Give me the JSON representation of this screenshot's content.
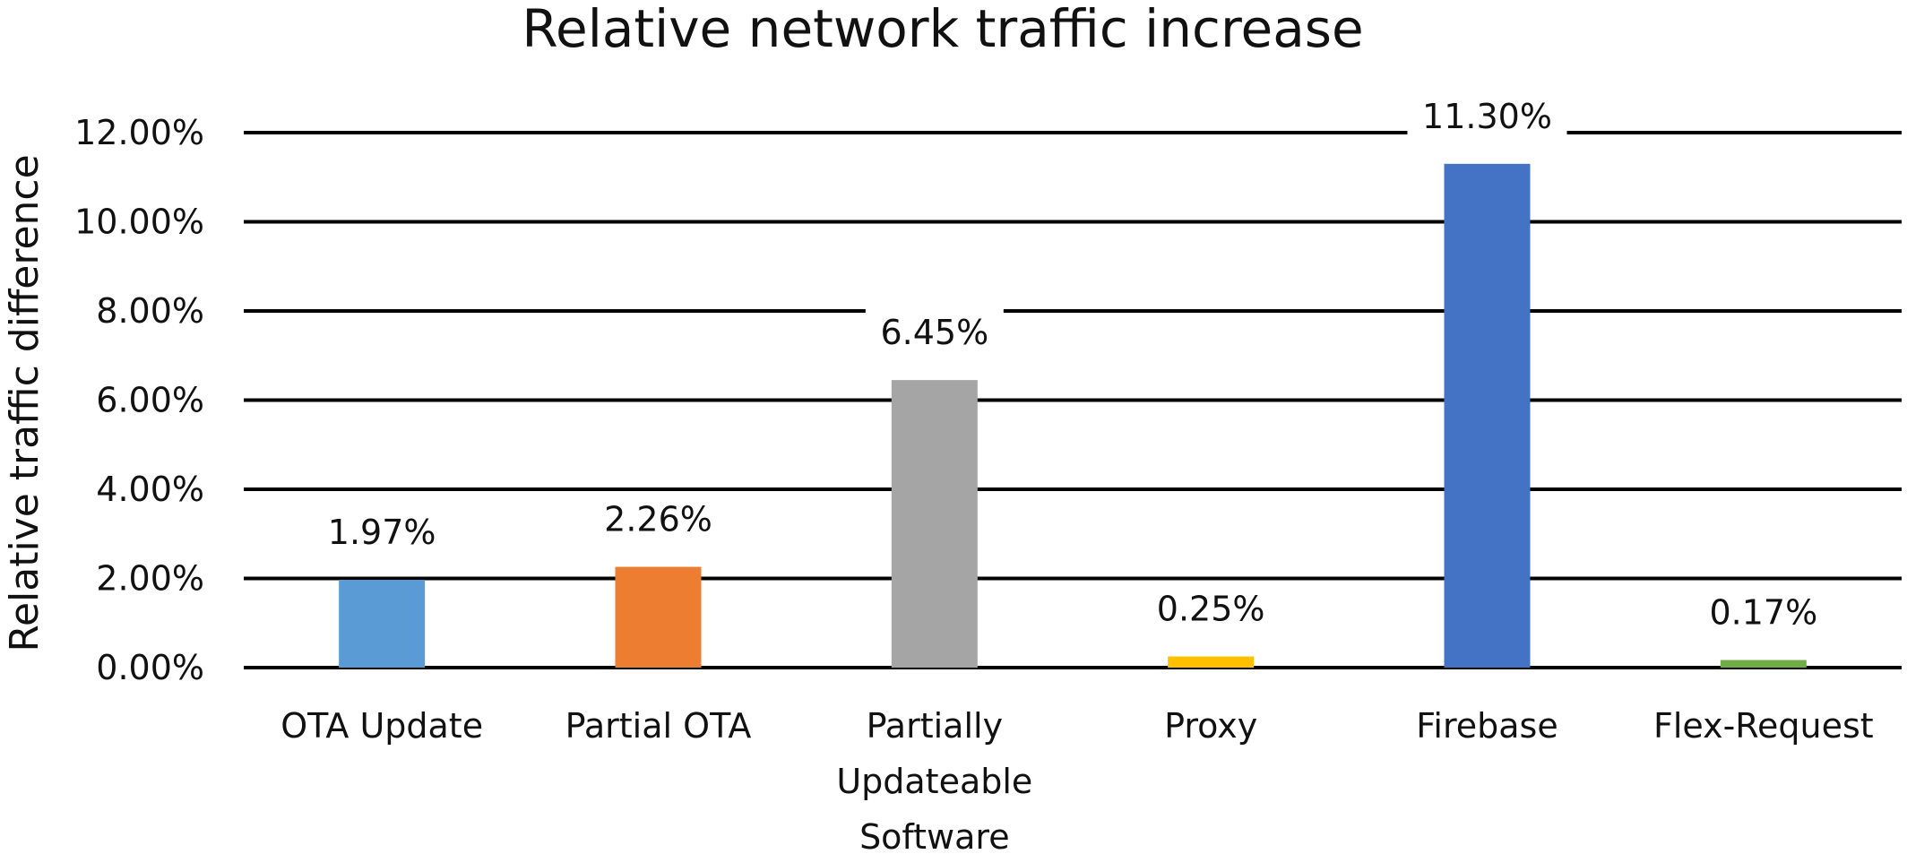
{
  "chart_data": {
    "type": "bar",
    "title": "Relative network traffic increase",
    "xlabel": "",
    "ylabel": "Relative traffic difference",
    "ylim": [
      0,
      0.12
    ],
    "yticks": [
      0,
      0.02,
      0.04,
      0.06,
      0.08,
      0.1,
      0.12
    ],
    "ytick_labels": [
      "0.00%",
      "2.00%",
      "4.00%",
      "6.00%",
      "8.00%",
      "10.00%",
      "12.00%"
    ],
    "grid": true,
    "legend": "none",
    "categories": [
      [
        "OTA Update"
      ],
      [
        "Partial OTA"
      ],
      [
        "Partially",
        "Updateable",
        "Software"
      ],
      [
        "Proxy"
      ],
      [
        "Firebase"
      ],
      [
        "Flex-Request"
      ]
    ],
    "values": [
      0.0197,
      0.0226,
      0.0645,
      0.0025,
      0.113,
      0.0017
    ],
    "data_labels": [
      "1.97%",
      "2.26%",
      "6.45%",
      "0.25%",
      "11.30%",
      "0.17%"
    ],
    "colors": [
      "#5B9BD5",
      "#ED7D31",
      "#A5A5A5",
      "#FFC000",
      "#4472C4",
      "#70AD47"
    ]
  }
}
